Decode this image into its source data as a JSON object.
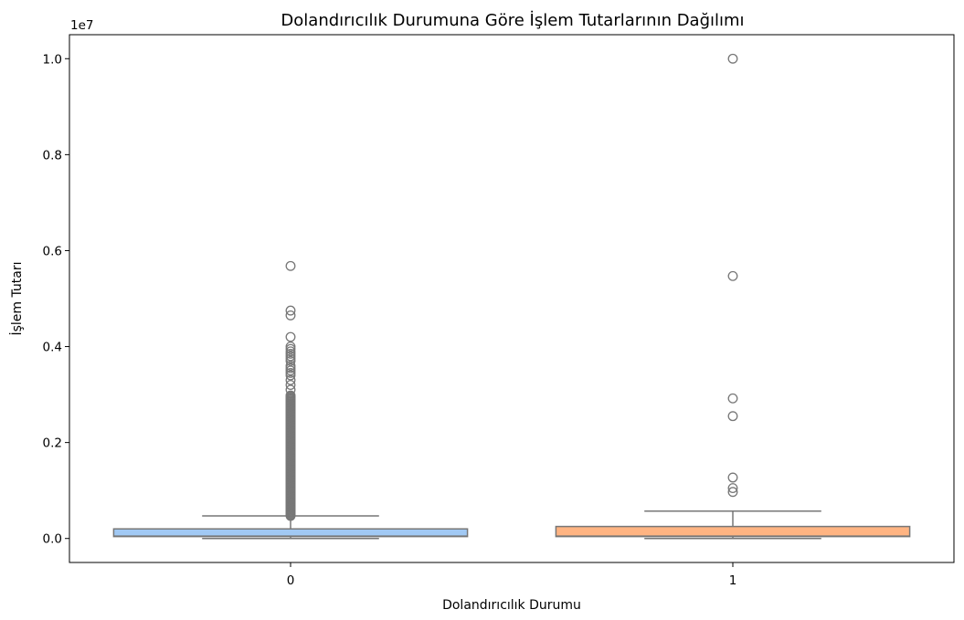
{
  "chart_data": {
    "type": "box",
    "title": "Dolandırıcılık Durumuna Göre İşlem Tutarlarının Dağılımı",
    "xlabel": "Dolandırıcılık Durumu",
    "ylabel": "İşlem Tutarı",
    "y_scale_label": "1e7",
    "y_multiplier": 10000000,
    "ylim": [
      -0.05,
      1.05
    ],
    "yticks": [
      0.0,
      0.2,
      0.4,
      0.6,
      0.8,
      1.0
    ],
    "ytick_labels": [
      "0.0",
      "0.2",
      "0.4",
      "0.6",
      "0.8",
      "1.0"
    ],
    "categories": [
      "0",
      "1"
    ],
    "boxes": [
      {
        "category": "0",
        "color": "#a1c9f4",
        "whisker_low": 0.0,
        "q1": 0.004,
        "median": 0.005,
        "q3": 0.02,
        "whisker_high": 0.047,
        "outliers_dense_range": [
          0.047,
          0.3
        ],
        "outliers": [
          0.31,
          0.32,
          0.33,
          0.34,
          0.345,
          0.35,
          0.355,
          0.36,
          0.37,
          0.375,
          0.38,
          0.385,
          0.39,
          0.395,
          0.4,
          0.42,
          0.465,
          0.475,
          0.568
        ]
      },
      {
        "category": "1",
        "color": "#ffb482",
        "whisker_low": 0.0,
        "q1": 0.004,
        "median": 0.005,
        "q3": 0.025,
        "whisker_high": 0.057,
        "outliers": [
          0.097,
          0.105,
          0.127,
          0.255,
          0.292,
          0.547,
          1.0
        ]
      }
    ]
  }
}
